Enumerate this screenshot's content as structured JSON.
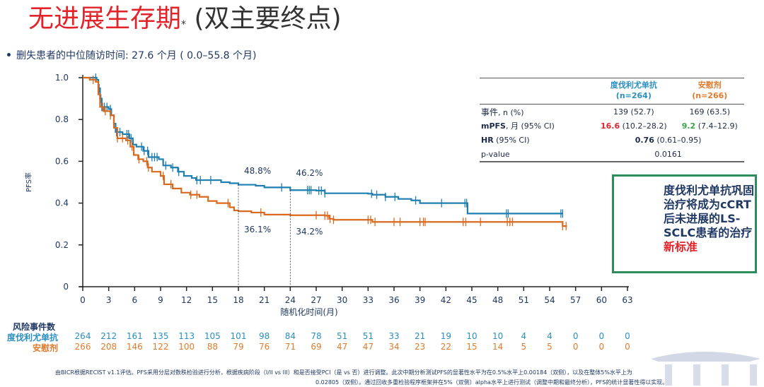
{
  "title": {
    "main": "无进展生存期",
    "star": "*",
    "rest": "(双主要终点)"
  },
  "bullet": "删失患者的中位随访时间: 27.6 个月 ( 0.0–55.8 个月)",
  "table": {
    "arm1_name": "度伐利尤单抗",
    "arm1_n": "(n=264)",
    "arm2_name": "安慰剂",
    "arm2_n": "(n=266)",
    "rows": {
      "events_label_cn": "事件",
      "events_label_rest": ", n (%)",
      "events_arm1": "139 (52.7)",
      "events_arm2": "169 (63.5)",
      "mpfs_label_b": "mPFS",
      "mpfs_label_rest": ", 月 (95% CI)",
      "mpfs_arm1_val": "16.6",
      "mpfs_arm1_ci": " (10.2–28.2)",
      "mpfs_arm2_val": "9.2",
      "mpfs_arm2_ci": " (7.4–12.9)",
      "hr_label_b": "HR",
      "hr_label_rest": " (95% CI)",
      "hr_val": "0.76",
      "hr_ci": " (0.61–0.95)",
      "p_label": "p-value",
      "p_val": "0.0161"
    }
  },
  "callout": {
    "text1": "度伐利尤单抗巩固治疗将成为cCRT后未进展的LS-SCLC患者的治疗",
    "text2": "新标准"
  },
  "risk_table": {
    "header": "风险事件数",
    "arm1_label": "度伐利尤单抗",
    "arm2_label": "安慰剂",
    "arm1": [
      "264",
      "212",
      "161",
      "135",
      "113",
      "105",
      "101",
      "98",
      "84",
      "78",
      "51",
      "51",
      "33",
      "21",
      "19",
      "10",
      "10",
      "4",
      "4",
      "0",
      "0",
      "0"
    ],
    "arm2": [
      "266",
      "208",
      "146",
      "122",
      "100",
      "88",
      "79",
      "76",
      "71",
      "69",
      "47",
      "47",
      "34",
      "23",
      "22",
      "15",
      "14",
      "5",
      "5",
      "0",
      "0",
      "0"
    ]
  },
  "footnote": {
    "line1": "由BICR根据RECIST v1.1评估。PFS采用分层对数秩检验进行分析，根据疾病阶段（I/II vs III）和是否接受PCI（是 vs 否）进行调整。此次中期分析测试PFS的显著性水平为在0.5%水平上0.00184（双侧），以及在整体5%水平上为",
    "line2": "0.02805（双侧）。通过回收多重检验程序框架并在5%（双侧）alpha水平上进行测试（调整中期和最终分析），PFS的统计显著性得以实现。"
  },
  "colors": {
    "arm1": "#1f7fb0",
    "arm2": "#d9691f",
    "axis": "#222222"
  },
  "chart_data": {
    "type": "line",
    "title": "",
    "xlabel": "随机化时间(月)",
    "ylabel": "PFS率",
    "xlim": [
      0,
      63
    ],
    "ylim": [
      0,
      1.0
    ],
    "xticks": [
      "0",
      "3",
      "6",
      "9",
      "12",
      "15",
      "18",
      "21",
      "24",
      "27",
      "30",
      "33",
      "36",
      "39",
      "42",
      "45",
      "48",
      "51",
      "54",
      "57",
      "60",
      "63"
    ],
    "yticks": [
      "0",
      "0.2",
      "0.4",
      "0.6",
      "0.8",
      "1.0"
    ],
    "annotations": [
      {
        "x": 18,
        "label_arm1": "48.8%",
        "label_arm2": "36.1%"
      },
      {
        "x": 24,
        "label_arm1": "46.2%",
        "label_arm2": "34.2%"
      }
    ],
    "series": [
      {
        "name": "度伐利尤单抗",
        "step_points": [
          [
            0,
            1.0
          ],
          [
            1.0,
            1.0
          ],
          [
            1.6,
            0.99
          ],
          [
            1.8,
            0.95
          ],
          [
            2.0,
            0.9
          ],
          [
            2.2,
            0.86
          ],
          [
            3.0,
            0.85
          ],
          [
            3.3,
            0.82
          ],
          [
            3.6,
            0.78
          ],
          [
            3.8,
            0.74
          ],
          [
            4.6,
            0.73
          ],
          [
            5.4,
            0.71
          ],
          [
            5.8,
            0.68
          ],
          [
            6.2,
            0.67
          ],
          [
            7.0,
            0.65
          ],
          [
            7.6,
            0.62
          ],
          [
            8.8,
            0.61
          ],
          [
            9.3,
            0.58
          ],
          [
            10.2,
            0.57
          ],
          [
            11.0,
            0.55
          ],
          [
            11.7,
            0.53
          ],
          [
            12.6,
            0.52
          ],
          [
            13.1,
            0.51
          ],
          [
            15.0,
            0.51
          ],
          [
            16.0,
            0.5
          ],
          [
            17.0,
            0.495
          ],
          [
            18.0,
            0.488
          ],
          [
            20.0,
            0.483
          ],
          [
            21.0,
            0.475
          ],
          [
            24.0,
            0.462
          ],
          [
            27.0,
            0.46
          ],
          [
            28.0,
            0.447
          ],
          [
            33.0,
            0.445
          ],
          [
            33.5,
            0.44
          ],
          [
            35.0,
            0.43
          ],
          [
            36.5,
            0.42
          ],
          [
            38.0,
            0.413
          ],
          [
            39.0,
            0.4
          ],
          [
            44.0,
            0.4
          ],
          [
            44.5,
            0.35
          ],
          [
            55.5,
            0.35
          ]
        ],
        "censor_x": [
          1.5,
          1.8,
          1.9,
          2.0,
          2.1,
          2.2,
          2.5,
          2.8,
          3.2,
          3.9,
          4.3,
          5.1,
          5.3,
          5.6,
          6.8,
          7.1,
          7.5,
          8.0,
          8.3,
          8.6,
          9.6,
          10.4,
          11.1,
          13.2,
          13.6,
          14.8,
          23.0,
          26.0,
          26.2,
          26.4,
          27.3,
          27.6,
          28.0,
          33.4,
          34.0,
          35.0,
          36.1,
          38.5,
          41.5,
          44.2,
          44.4,
          49.0,
          49.2,
          55.3,
          55.5
        ],
        "median": 16.6
      },
      {
        "name": "安慰剂",
        "step_points": [
          [
            0,
            1.0
          ],
          [
            0.8,
            0.99
          ],
          [
            1.5,
            0.98
          ],
          [
            1.8,
            0.92
          ],
          [
            2.0,
            0.86
          ],
          [
            2.4,
            0.84
          ],
          [
            3.2,
            0.82
          ],
          [
            3.6,
            0.76
          ],
          [
            4.0,
            0.71
          ],
          [
            5.0,
            0.7
          ],
          [
            5.5,
            0.67
          ],
          [
            5.9,
            0.63
          ],
          [
            6.4,
            0.61
          ],
          [
            7.0,
            0.6
          ],
          [
            7.5,
            0.57
          ],
          [
            8.0,
            0.55
          ],
          [
            9.0,
            0.53
          ],
          [
            9.4,
            0.49
          ],
          [
            10.4,
            0.47
          ],
          [
            11.4,
            0.45
          ],
          [
            12.4,
            0.44
          ],
          [
            13.5,
            0.43
          ],
          [
            14.5,
            0.41
          ],
          [
            15.5,
            0.4
          ],
          [
            17.0,
            0.38
          ],
          [
            17.5,
            0.365
          ],
          [
            18.0,
            0.361
          ],
          [
            19.5,
            0.355
          ],
          [
            21.0,
            0.345
          ],
          [
            24.0,
            0.342
          ],
          [
            28.0,
            0.34
          ],
          [
            28.5,
            0.325
          ],
          [
            29.0,
            0.32
          ],
          [
            33.5,
            0.31
          ],
          [
            55.5,
            0.29
          ],
          [
            56.0,
            0.29
          ]
        ],
        "censor_x": [
          1.2,
          2.3,
          2.6,
          3.2,
          4.0,
          4.6,
          5.2,
          5.7,
          6.5,
          7.4,
          7.6,
          9.3,
          10.2,
          12.5,
          13.2,
          16.8,
          20.6,
          27.0,
          28.0,
          28.3,
          28.6,
          29.0,
          33.0,
          33.3,
          33.8,
          36.0,
          36.7,
          39.0,
          39.4,
          39.6,
          44.0,
          44.3,
          46.0,
          49.1,
          49.4,
          49.7,
          55.5,
          55.9
        ],
        "median": 9.2
      }
    ]
  }
}
